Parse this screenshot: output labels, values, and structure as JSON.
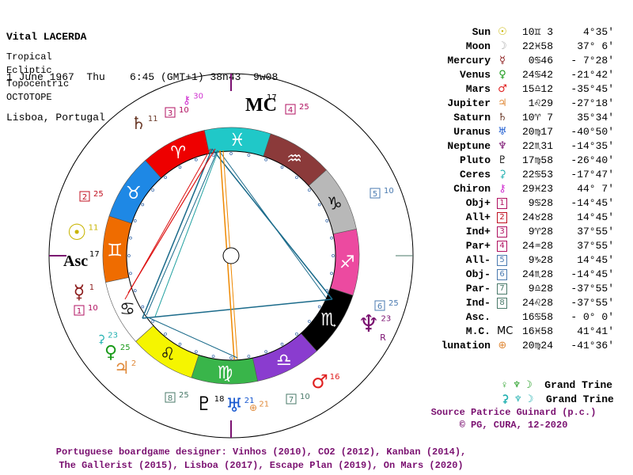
{
  "header": {
    "name": "Vital LACERDA",
    "date_line": "1 June 1967  Thu    6:45 (GMT+1) 38n43  9w08",
    "place": "Lisboa, Portugal"
  },
  "system": [
    "Tropical",
    "Ecliptic",
    "Topocentric",
    "OCTOTOPE"
  ],
  "colors": {
    "aries": "#ee0000",
    "taurus": "#1e88e5",
    "gemini": "#ef6c00",
    "cancer": "#ffffff",
    "leo": "#f5f500",
    "virgo": "#39b54a",
    "libra": "#8a3ccf",
    "scorpio": "#000000",
    "sagittarius": "#ec4aa0",
    "capricorn": "#b8b8b8",
    "aquarius": "#8b3a3a",
    "pisces": "#20c8c8",
    "text_purple": "#7a1070"
  },
  "wheel": {
    "mc_label": "MC",
    "mc_sup": "17",
    "asc_label": "Asc",
    "asc_sup": "17",
    "outer_labels": [
      {
        "t": "♄",
        "sup": "11",
        "c": "#6b3b2a"
      },
      {
        "t": "☉",
        "sup": "11",
        "c": "#c8b400"
      },
      {
        "t": "☿",
        "sup": "1",
        "c": "#8b1a1a"
      },
      {
        "t": "♀",
        "sup": "25",
        "c": "#1a9a1a"
      },
      {
        "t": "♃",
        "sup": "2",
        "c": "#e08a3a"
      },
      {
        "t": "♇",
        "sup": "18",
        "c": "#000000"
      },
      {
        "t": "♅",
        "sup": "21",
        "c": "#1a5ad0"
      },
      {
        "t": "♂",
        "sup": "16",
        "c": "#e02020"
      },
      {
        "t": "♆",
        "sup": "23",
        "c": "#7a1070"
      },
      {
        "t": "R",
        "sup": "",
        "c": "#7a1070"
      },
      {
        "t": "⚷",
        "sup": "30",
        "c": "#d030d0"
      },
      {
        "t": "⚳",
        "sup": "23",
        "c": "#20b0b0"
      },
      {
        "t": "⊕",
        "sup": "21",
        "c": "#e08a3a"
      }
    ],
    "parts": [
      {
        "n": "3",
        "sup": "10",
        "c": "#b01060"
      },
      {
        "n": "4",
        "sup": "25",
        "c": "#b01060"
      },
      {
        "n": "2",
        "sup": "25",
        "c": "#c01020"
      },
      {
        "n": "5",
        "sup": "10",
        "c": "#4a7ab0"
      },
      {
        "n": "1",
        "sup": "10",
        "c": "#b01060"
      },
      {
        "n": "6",
        "sup": "25",
        "c": "#4a7ab0"
      },
      {
        "n": "8",
        "sup": "25",
        "c": "#4a7a6a"
      },
      {
        "n": "7",
        "sup": "10",
        "c": "#4a7a6a"
      }
    ]
  },
  "planets": [
    {
      "name": "Sun",
      "glyph": "☉",
      "gc": "#c8b400",
      "pos": "10♊ 3",
      "lat": "4°35'"
    },
    {
      "name": "Moon",
      "glyph": "☽",
      "gc": "#aaaaaa",
      "pos": "22♓58",
      "lat": "37° 6'"
    },
    {
      "name": "Mercury",
      "glyph": "☿",
      "gc": "#8b1a1a",
      "pos": " 0♋46",
      "lat": "- 7°28'"
    },
    {
      "name": "Venus",
      "glyph": "♀",
      "gc": "#1a9a1a",
      "pos": "24♋42",
      "lat": "-21°42'"
    },
    {
      "name": "Mars",
      "glyph": "♂",
      "gc": "#e02020",
      "pos": "15♎12",
      "lat": "-35°45'"
    },
    {
      "name": "Jupiter",
      "glyph": "♃",
      "gc": "#e08a3a",
      "pos": " 1♌29",
      "lat": "-27°18'"
    },
    {
      "name": "Saturn",
      "glyph": "♄",
      "gc": "#6b3b2a",
      "pos": "10♈ 7",
      "lat": "35°34'"
    },
    {
      "name": "Uranus",
      "glyph": "♅",
      "gc": "#1a5ad0",
      "pos": "20♍17",
      "lat": "-40°50'"
    },
    {
      "name": "Neptune",
      "glyph": "♆",
      "gc": "#7a1070",
      "pos": "22♏31",
      "lat": "-14°35'"
    },
    {
      "name": "Pluto",
      "glyph": "♇",
      "gc": "#000000",
      "pos": "17♍58",
      "lat": "-26°40'"
    },
    {
      "name": "Ceres",
      "glyph": "⚳",
      "gc": "#20b0b0",
      "pos": "22♋53",
      "lat": "-17°47'"
    },
    {
      "name": "Chiron",
      "glyph": "⚷",
      "gc": "#d030d0",
      "pos": "29♓23",
      "lat": "44° 7'"
    },
    {
      "name": "Obj+",
      "glyph": "1",
      "gc": "#b01060",
      "pos": " 9♋28",
      "lat": "-14°45'"
    },
    {
      "name": "All+",
      "glyph": "2",
      "gc": "#c01020",
      "pos": "24♉28",
      "lat": "14°45'"
    },
    {
      "name": "Ind+",
      "glyph": "3",
      "gc": "#b01060",
      "pos": " 9♈28",
      "lat": "37°55'"
    },
    {
      "name": "Par+",
      "glyph": "4",
      "gc": "#b01060",
      "pos": "24♒28",
      "lat": "37°55'"
    },
    {
      "name": "All-",
      "glyph": "5",
      "gc": "#4a7ab0",
      "pos": " 9♑28",
      "lat": "14°45'"
    },
    {
      "name": "Obj-",
      "glyph": "6",
      "gc": "#4a7ab0",
      "pos": "24♏28",
      "lat": "-14°45'"
    },
    {
      "name": "Par-",
      "glyph": "7",
      "gc": "#4a7a6a",
      "pos": " 9♎28",
      "lat": "-37°55'"
    },
    {
      "name": "Ind-",
      "glyph": "8",
      "gc": "#4a7a6a",
      "pos": "24♌28",
      "lat": "-37°55'"
    },
    {
      "name": "Asc.",
      "glyph": "",
      "gc": "#000000",
      "pos": "16♋58",
      "lat": "- 0° 0'"
    },
    {
      "name": "M.C.",
      "glyph": "MC",
      "gc": "#000000",
      "pos": "16♓58",
      "lat": "41°41'"
    },
    {
      "name": "lunation",
      "glyph": "⊕",
      "gc": "#e08a3a",
      "pos": "20♍24",
      "lat": "-41°36'"
    }
  ],
  "trines": [
    {
      "glyphs": "♀ ♆ ☽",
      "label": "Grand Trine"
    },
    {
      "glyphs": "⚳ ♆ ☽",
      "label": "Grand Trine"
    }
  ],
  "credit": {
    "line1": "Source Patrice Guinard (p.c.)",
    "line2": "© PG, CURA, 12-2020"
  },
  "footer": {
    "line1": "Portuguese boardgame designer: Vinhos (2010), CO2 (2012), Kanban (2014),",
    "line2": "The Gallerist (2015), Lisboa (2017), Escape Plan (2019), On Mars (2020)"
  }
}
